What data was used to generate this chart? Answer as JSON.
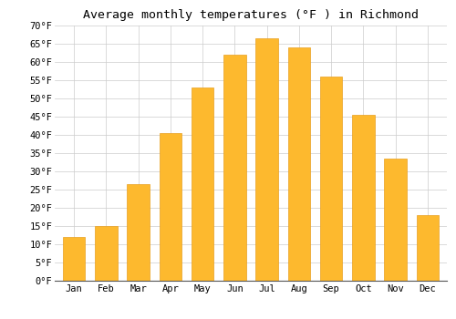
{
  "title": "Average monthly temperatures (°F ) in Richmond",
  "months": [
    "Jan",
    "Feb",
    "Mar",
    "Apr",
    "May",
    "Jun",
    "Jul",
    "Aug",
    "Sep",
    "Oct",
    "Nov",
    "Dec"
  ],
  "values": [
    12,
    15,
    26.5,
    40.5,
    53,
    62,
    66.5,
    64,
    56,
    45.5,
    33.5,
    18
  ],
  "bar_color": "#FDB92E",
  "bar_edge_color": "#E8A020",
  "ylim": [
    0,
    70
  ],
  "yticks": [
    0,
    5,
    10,
    15,
    20,
    25,
    30,
    35,
    40,
    45,
    50,
    55,
    60,
    65,
    70
  ],
  "ytick_labels": [
    "0°F",
    "5°F",
    "10°F",
    "15°F",
    "20°F",
    "25°F",
    "30°F",
    "35°F",
    "40°F",
    "45°F",
    "50°F",
    "55°F",
    "60°F",
    "65°F",
    "70°F"
  ],
  "background_color": "#ffffff",
  "grid_color": "#cccccc",
  "title_fontsize": 9.5,
  "tick_fontsize": 7.5,
  "font_family": "monospace"
}
